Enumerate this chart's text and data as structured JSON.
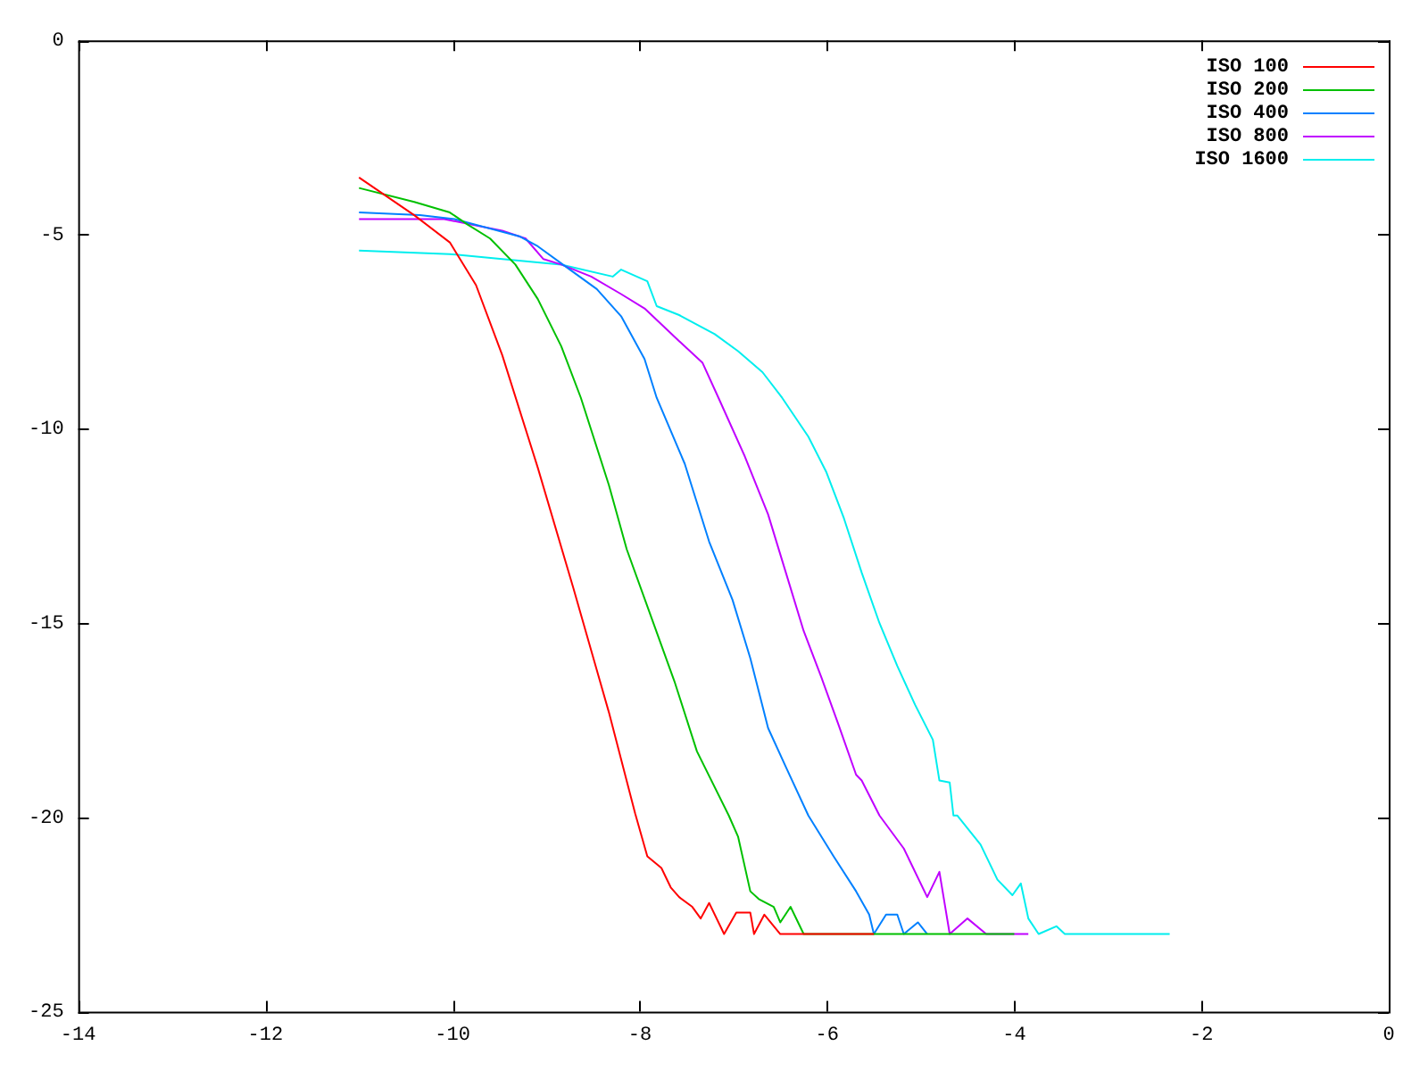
{
  "chart_data": {
    "type": "line",
    "xlim": [
      -14,
      0
    ],
    "ylim": [
      -25,
      0
    ],
    "xticks": [
      -14,
      -12,
      -10,
      -8,
      -6,
      -4,
      -2,
      0
    ],
    "yticks": [
      -25,
      -20,
      -15,
      -10,
      -5,
      0
    ],
    "grid": false,
    "legend": "top right",
    "marker": "none",
    "line_style": "solid",
    "series": [
      {
        "name": "ISO 100",
        "color": "#ff0000",
        "x": [
          -11,
          -10.41,
          -10.03,
          -9.75,
          -9.47,
          -9.09,
          -8.71,
          -8.33,
          -8.05,
          -7.92,
          -7.77,
          -7.67,
          -7.58,
          -7.44,
          -7.35,
          -7.26,
          -7.1,
          -6.97,
          -6.82,
          -6.78,
          -6.67,
          -6.5,
          -5.5
        ],
        "values": [
          -3.53,
          -4.5,
          -5.2,
          -6.3,
          -8.1,
          -11.0,
          -14.1,
          -17.3,
          -19.9,
          -21.0,
          -21.3,
          -21.8,
          -22.05,
          -22.3,
          -22.6,
          -22.2,
          -23,
          -22.45,
          -22.45,
          -23,
          -22.5,
          -23,
          -23
        ]
      },
      {
        "name": "ISO 200",
        "color": "#00c000",
        "x": [
          -11,
          -10.41,
          -10.03,
          -9.84,
          -9.6,
          -9.33,
          -9.09,
          -8.84,
          -8.63,
          -8.33,
          -8.14,
          -7.9,
          -7.63,
          -7.39,
          -7.05,
          -6.95,
          -6.82,
          -6.73,
          -6.57,
          -6.5,
          -6.39,
          -6.25,
          -4.0
        ],
        "values": [
          -3.8,
          -4.16,
          -4.43,
          -4.74,
          -5.1,
          -5.77,
          -6.66,
          -7.87,
          -9.2,
          -11.45,
          -13.1,
          -14.7,
          -16.5,
          -18.3,
          -19.95,
          -20.5,
          -21.9,
          -22.1,
          -22.3,
          -22.7,
          -22.3,
          -23,
          -23
        ]
      },
      {
        "name": "ISO 400",
        "color": "#0080ff",
        "x": [
          -11,
          -10.35,
          -9.98,
          -9.28,
          -9.09,
          -8.77,
          -8.46,
          -8.2,
          -7.95,
          -7.82,
          -7.52,
          -7.26,
          -7.01,
          -6.82,
          -6.63,
          -6.44,
          -6.2,
          -5.93,
          -5.69,
          -5.55,
          -5.5,
          -5.37,
          -5.25,
          -5.18,
          -5.03,
          -4.93
        ],
        "values": [
          -4.43,
          -4.5,
          -4.6,
          -5.05,
          -5.3,
          -5.86,
          -6.4,
          -7.1,
          -8.2,
          -9.2,
          -10.9,
          -12.9,
          -14.4,
          -15.9,
          -17.7,
          -18.7,
          -19.95,
          -21.0,
          -21.9,
          -22.5,
          -23,
          -22.5,
          -22.5,
          -23,
          -22.7,
          -23
        ]
      },
      {
        "name": "ISO 800",
        "color": "#c000ff",
        "x": [
          -11,
          -10.09,
          -9.47,
          -9.22,
          -9.03,
          -8.84,
          -8.52,
          -8.2,
          -7.95,
          -7.58,
          -7.33,
          -7.16,
          -6.88,
          -6.63,
          -6.44,
          -6.25,
          -6.06,
          -5.88,
          -5.69,
          -5.63,
          -5.44,
          -5.18,
          -4.93,
          -4.8,
          -4.69,
          -4.5,
          -4.3,
          -3.85
        ],
        "values": [
          -4.6,
          -4.6,
          -4.9,
          -5.1,
          -5.63,
          -5.77,
          -6.08,
          -6.53,
          -6.9,
          -7.74,
          -8.3,
          -9.2,
          -10.7,
          -12.2,
          -13.7,
          -15.2,
          -16.4,
          -17.6,
          -18.9,
          -19.05,
          -19.95,
          -20.8,
          -22.05,
          -21.4,
          -23,
          -22.6,
          -23,
          -23
        ]
      },
      {
        "name": "ISO 1600",
        "color": "#00eeee",
        "x": [
          -11,
          -10.03,
          -9.47,
          -8.84,
          -8.29,
          -8.2,
          -7.92,
          -7.82,
          -7.58,
          -7.2,
          -6.95,
          -6.69,
          -6.48,
          -6.2,
          -6.01,
          -5.82,
          -5.63,
          -5.44,
          -5.25,
          -5.06,
          -4.87,
          -4.8,
          -4.69,
          -4.65,
          -4.61,
          -4.36,
          -4.18,
          -4.02,
          -3.93,
          -3.85,
          -3.74,
          -3.55,
          -3.46,
          -2.34
        ],
        "values": [
          -5.41,
          -5.5,
          -5.63,
          -5.77,
          -6.08,
          -5.9,
          -6.2,
          -6.84,
          -7.07,
          -7.56,
          -8.0,
          -8.54,
          -9.2,
          -10.2,
          -11.1,
          -12.3,
          -13.7,
          -15.0,
          -16.1,
          -17.1,
          -18.0,
          -19.05,
          -19.1,
          -19.95,
          -19.95,
          -20.7,
          -21.6,
          -22.0,
          -21.7,
          -22.6,
          -23,
          -22.8,
          -23,
          -23
        ]
      }
    ]
  }
}
